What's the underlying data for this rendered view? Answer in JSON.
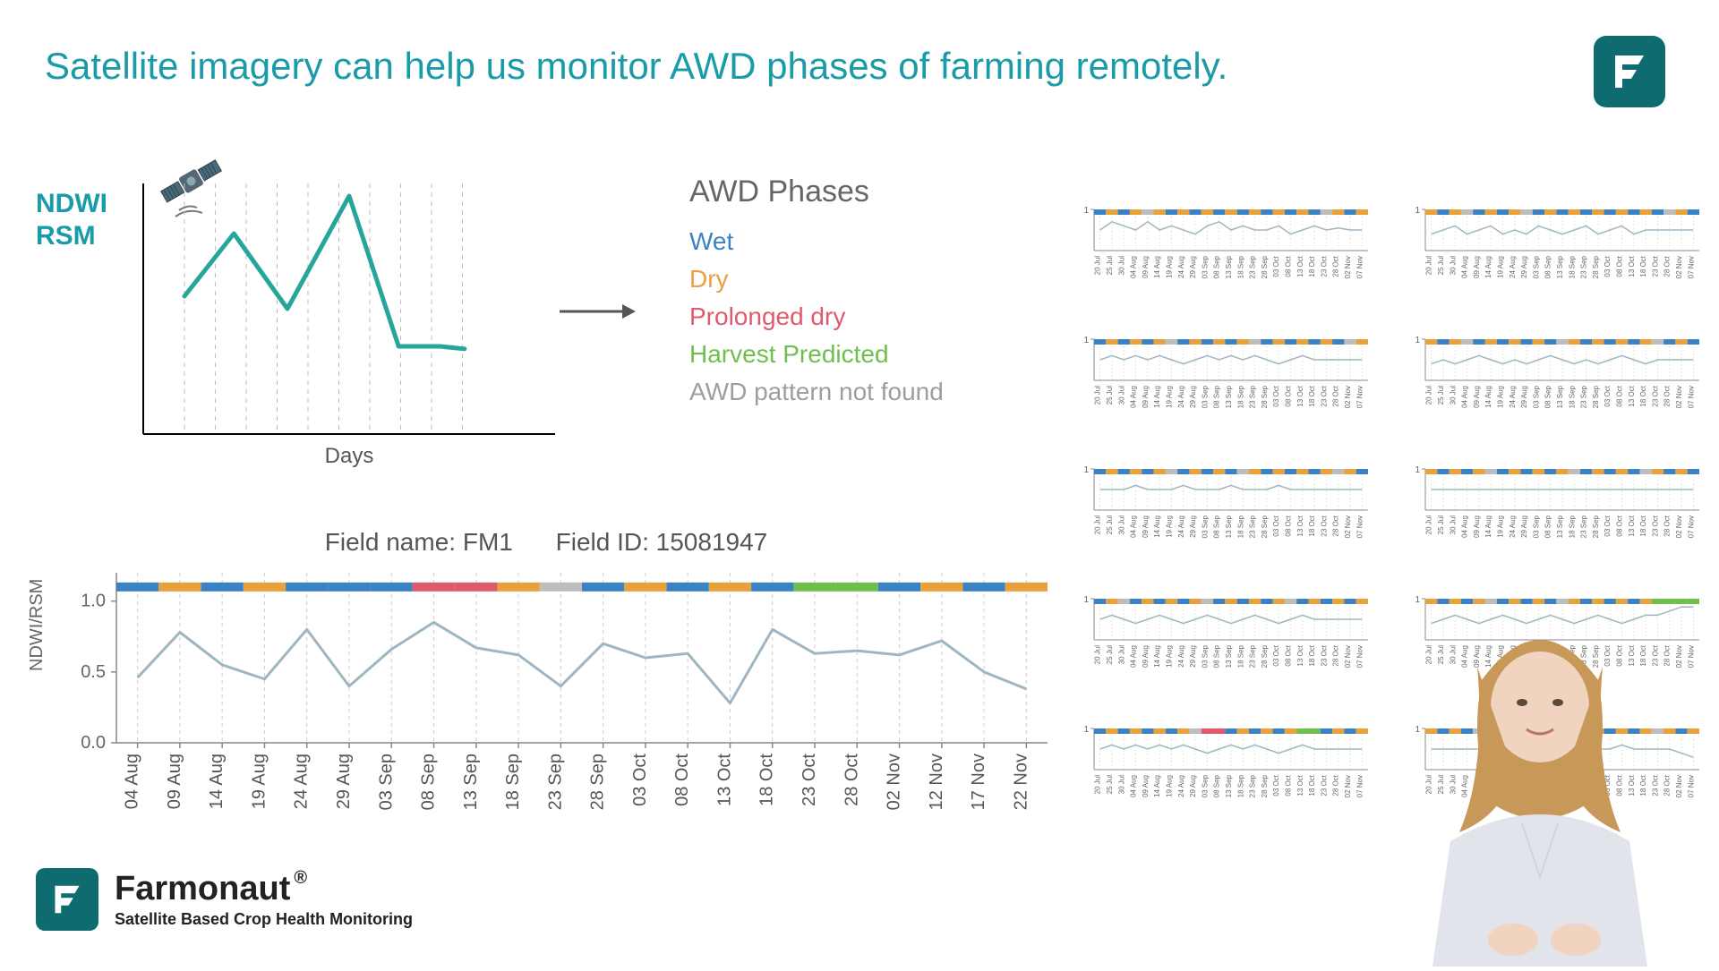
{
  "title": {
    "text": "Satellite imagery can help us monitor AWD phases of farming remotely.",
    "color": "#1a9ba8"
  },
  "logo": {
    "bg": "#0e6b6f"
  },
  "ndwi_label": {
    "line1": "NDWI",
    "line2": "RSM",
    "color": "#1a9ba8"
  },
  "concept_chart": {
    "type": "line",
    "line_color": "#26a69a",
    "line_width": 5,
    "grid_color": "#bfbfbf",
    "axis_color": "#000000",
    "x_label": "Days",
    "x_label_color": "#555555",
    "points": [
      {
        "x": 0.1,
        "y": 0.55
      },
      {
        "x": 0.22,
        "y": 0.8
      },
      {
        "x": 0.35,
        "y": 0.5
      },
      {
        "x": 0.5,
        "y": 0.95
      },
      {
        "x": 0.62,
        "y": 0.35
      },
      {
        "x": 0.72,
        "y": 0.35
      },
      {
        "x": 0.78,
        "y": 0.34
      }
    ],
    "gridlines_x": [
      0.1,
      0.175,
      0.25,
      0.325,
      0.4,
      0.475,
      0.55,
      0.625,
      0.7,
      0.775
    ]
  },
  "phases": {
    "title": "AWD Phases",
    "items": [
      {
        "label": "Wet",
        "color": "#3b82c4"
      },
      {
        "label": "Dry",
        "color": "#e9a13b"
      },
      {
        "label": "Prolonged dry",
        "color": "#e05a6f"
      },
      {
        "label": "Harvest Predicted",
        "color": "#6fbf4b"
      },
      {
        "label": "AWD pattern not found",
        "color": "#9e9e9e"
      }
    ]
  },
  "main_chart": {
    "type": "line",
    "field_name_label": "Field name:",
    "field_name": "FM1",
    "field_id_label": "Field ID:",
    "field_id": "15081947",
    "ylabel": "NDWI/RSM",
    "ylim": [
      0,
      1.2
    ],
    "yticks": [
      0.0,
      0.5,
      1.0
    ],
    "ytick_labels": [
      "0.0",
      "0.5",
      "1.0"
    ],
    "axis_color": "#888888",
    "grid_color": "#d0d0d0",
    "line_color": "#9fb6c2",
    "line_width": 3,
    "bar_y": 1.1,
    "x_labels": [
      "04 Aug",
      "09 Aug",
      "14 Aug",
      "19 Aug",
      "24 Aug",
      "29 Aug",
      "03 Sep",
      "08 Sep",
      "13 Sep",
      "18 Sep",
      "23 Sep",
      "28 Sep",
      "03 Oct",
      "08 Oct",
      "13 Oct",
      "18 Oct",
      "23 Oct",
      "28 Oct",
      "02 Nov",
      "12 Nov",
      "17 Nov",
      "22 Nov"
    ],
    "values": [
      0.46,
      0.78,
      0.55,
      0.45,
      0.8,
      0.4,
      0.66,
      0.85,
      0.67,
      0.62,
      0.4,
      0.7,
      0.6,
      0.63,
      0.28,
      0.8,
      0.63,
      0.65,
      0.62,
      0.72,
      0.5,
      0.38
    ],
    "phase_bar": [
      "wet",
      "dry",
      "wet",
      "dry",
      "wet",
      "wet",
      "wet",
      "pdry",
      "pdry",
      "dry",
      "gray",
      "wet",
      "dry",
      "wet",
      "dry",
      "wet",
      "harv",
      "harv",
      "wet",
      "dry",
      "wet",
      "dry"
    ]
  },
  "phase_colors": {
    "wet": "#3b82c4",
    "dry": "#e9a13b",
    "pdry": "#e05a6f",
    "harv": "#6fbf4b",
    "gray": "#bdbdbd"
  },
  "mini_charts": {
    "count": 10,
    "x_labels": [
      "20 Jul",
      "25 Jul",
      "30 Jul",
      "04 Aug",
      "09 Aug",
      "14 Aug",
      "19 Aug",
      "24 Aug",
      "29 Aug",
      "03 Sep",
      "08 Sep",
      "13 Sep",
      "18 Sep",
      "23 Sep",
      "28 Sep",
      "03 Oct",
      "08 Oct",
      "13 Oct",
      "18 Oct",
      "23 Oct",
      "28 Oct",
      "02 Nov",
      "07 Nov"
    ],
    "ytick": "1",
    "line_color": "#9fb6c2",
    "grid_color": "#dcdcdc",
    "charts": [
      {
        "values": [
          0.5,
          0.7,
          0.6,
          0.5,
          0.7,
          0.5,
          0.6,
          0.5,
          0.4,
          0.6,
          0.7,
          0.5,
          0.6,
          0.5,
          0.5,
          0.6,
          0.4,
          0.5,
          0.6,
          0.5,
          0.55,
          0.5,
          0.5
        ],
        "bar": [
          "wet",
          "dry",
          "wet",
          "dry",
          "gray",
          "dry",
          "wet",
          "dry",
          "wet",
          "dry",
          "wet",
          "dry",
          "wet",
          "dry",
          "wet",
          "dry",
          "wet",
          "dry",
          "wet",
          "gray",
          "dry",
          "wet",
          "dry"
        ]
      },
      {
        "values": [
          0.4,
          0.5,
          0.6,
          0.4,
          0.5,
          0.6,
          0.4,
          0.5,
          0.4,
          0.6,
          0.5,
          0.4,
          0.5,
          0.6,
          0.4,
          0.5,
          0.6,
          0.4,
          0.5,
          0.5,
          0.5,
          0.5,
          0.5
        ],
        "bar": [
          "dry",
          "wet",
          "dry",
          "gray",
          "wet",
          "dry",
          "wet",
          "dry",
          "gray",
          "wet",
          "dry",
          "wet",
          "dry",
          "wet",
          "dry",
          "wet",
          "dry",
          "wet",
          "dry",
          "wet",
          "gray",
          "dry",
          "wet"
        ]
      },
      {
        "values": [
          0.5,
          0.6,
          0.5,
          0.6,
          0.5,
          0.6,
          0.5,
          0.4,
          0.5,
          0.6,
          0.5,
          0.6,
          0.5,
          0.6,
          0.5,
          0.4,
          0.5,
          0.6,
          0.5,
          0.5,
          0.5,
          0.5,
          0.5
        ],
        "bar": [
          "wet",
          "dry",
          "wet",
          "dry",
          "wet",
          "dry",
          "gray",
          "wet",
          "dry",
          "wet",
          "dry",
          "wet",
          "dry",
          "gray",
          "wet",
          "dry",
          "wet",
          "dry",
          "wet",
          "dry",
          "wet",
          "gray",
          "dry"
        ]
      },
      {
        "values": [
          0.4,
          0.5,
          0.4,
          0.5,
          0.6,
          0.5,
          0.4,
          0.5,
          0.4,
          0.5,
          0.6,
          0.5,
          0.4,
          0.5,
          0.4,
          0.5,
          0.6,
          0.5,
          0.4,
          0.5,
          0.5,
          0.5,
          0.5
        ],
        "bar": [
          "dry",
          "wet",
          "dry",
          "gray",
          "wet",
          "dry",
          "wet",
          "dry",
          "wet",
          "dry",
          "wet",
          "gray",
          "dry",
          "wet",
          "dry",
          "wet",
          "dry",
          "wet",
          "dry",
          "gray",
          "wet",
          "dry",
          "wet"
        ]
      },
      {
        "values": [
          0.5,
          0.5,
          0.5,
          0.6,
          0.5,
          0.5,
          0.5,
          0.6,
          0.5,
          0.5,
          0.5,
          0.6,
          0.5,
          0.5,
          0.5,
          0.6,
          0.5,
          0.5,
          0.5,
          0.5,
          0.5,
          0.5,
          0.5
        ],
        "bar": [
          "wet",
          "dry",
          "wet",
          "dry",
          "wet",
          "dry",
          "gray",
          "wet",
          "dry",
          "wet",
          "dry",
          "wet",
          "gray",
          "dry",
          "wet",
          "dry",
          "wet",
          "dry",
          "wet",
          "dry",
          "gray",
          "dry",
          "wet"
        ]
      },
      {
        "values": [
          0.5,
          0.5,
          0.5,
          0.5,
          0.5,
          0.5,
          0.5,
          0.5,
          0.5,
          0.5,
          0.5,
          0.5,
          0.5,
          0.5,
          0.5,
          0.5,
          0.5,
          0.5,
          0.5,
          0.5,
          0.5,
          0.5,
          0.5
        ],
        "bar": [
          "dry",
          "wet",
          "dry",
          "wet",
          "dry",
          "gray",
          "wet",
          "dry",
          "wet",
          "dry",
          "wet",
          "dry",
          "gray",
          "wet",
          "dry",
          "wet",
          "dry",
          "wet",
          "gray",
          "dry",
          "wet",
          "dry",
          "wet"
        ]
      },
      {
        "values": [
          0.5,
          0.6,
          0.5,
          0.4,
          0.5,
          0.6,
          0.5,
          0.4,
          0.5,
          0.6,
          0.5,
          0.4,
          0.5,
          0.6,
          0.5,
          0.4,
          0.5,
          0.6,
          0.5,
          0.5,
          0.5,
          0.5,
          0.5
        ],
        "bar": [
          "wet",
          "dry",
          "gray",
          "wet",
          "dry",
          "wet",
          "dry",
          "wet",
          "dry",
          "gray",
          "wet",
          "dry",
          "wet",
          "dry",
          "wet",
          "dry",
          "gray",
          "wet",
          "dry",
          "wet",
          "dry",
          "wet",
          "dry"
        ]
      },
      {
        "values": [
          0.4,
          0.5,
          0.6,
          0.5,
          0.4,
          0.5,
          0.6,
          0.5,
          0.4,
          0.5,
          0.6,
          0.5,
          0.4,
          0.5,
          0.6,
          0.5,
          0.4,
          0.5,
          0.6,
          0.6,
          0.7,
          0.8,
          0.8
        ],
        "bar": [
          "dry",
          "wet",
          "dry",
          "wet",
          "dry",
          "gray",
          "wet",
          "dry",
          "wet",
          "dry",
          "wet",
          "gray",
          "dry",
          "wet",
          "dry",
          "wet",
          "dry",
          "wet",
          "dry",
          "harv",
          "harv",
          "harv",
          "harv"
        ]
      },
      {
        "values": [
          0.5,
          0.6,
          0.5,
          0.6,
          0.5,
          0.6,
          0.5,
          0.6,
          0.5,
          0.4,
          0.5,
          0.6,
          0.5,
          0.6,
          0.5,
          0.4,
          0.5,
          0.6,
          0.5,
          0.5,
          0.5,
          0.5,
          0.5
        ],
        "bar": [
          "wet",
          "dry",
          "wet",
          "dry",
          "wet",
          "dry",
          "wet",
          "dry",
          "gray",
          "pdry",
          "pdry",
          "wet",
          "dry",
          "wet",
          "dry",
          "wet",
          "dry",
          "harv",
          "harv",
          "wet",
          "dry",
          "wet",
          "dry"
        ]
      },
      {
        "values": [
          0.5,
          0.5,
          0.5,
          0.5,
          0.5,
          0.5,
          0.6,
          0.5,
          0.5,
          0.5,
          0.5,
          0.6,
          0.5,
          0.5,
          0.5,
          0.5,
          0.6,
          0.5,
          0.5,
          0.5,
          0.5,
          0.4,
          0.3
        ],
        "bar": [
          "dry",
          "wet",
          "dry",
          "wet",
          "gray",
          "dry",
          "wet",
          "dry",
          "wet",
          "dry",
          "wet",
          "dry",
          "gray",
          "wet",
          "dry",
          "wet",
          "dry",
          "wet",
          "dry",
          "gray",
          "dry",
          "wet",
          "dry"
        ]
      }
    ]
  },
  "footer": {
    "brand": "Farmonaut",
    "reg": "®",
    "sub": "Satellite Based Crop Health Monitoring",
    "logo_bg": "#0e6b6f",
    "text_color": "#222222"
  }
}
